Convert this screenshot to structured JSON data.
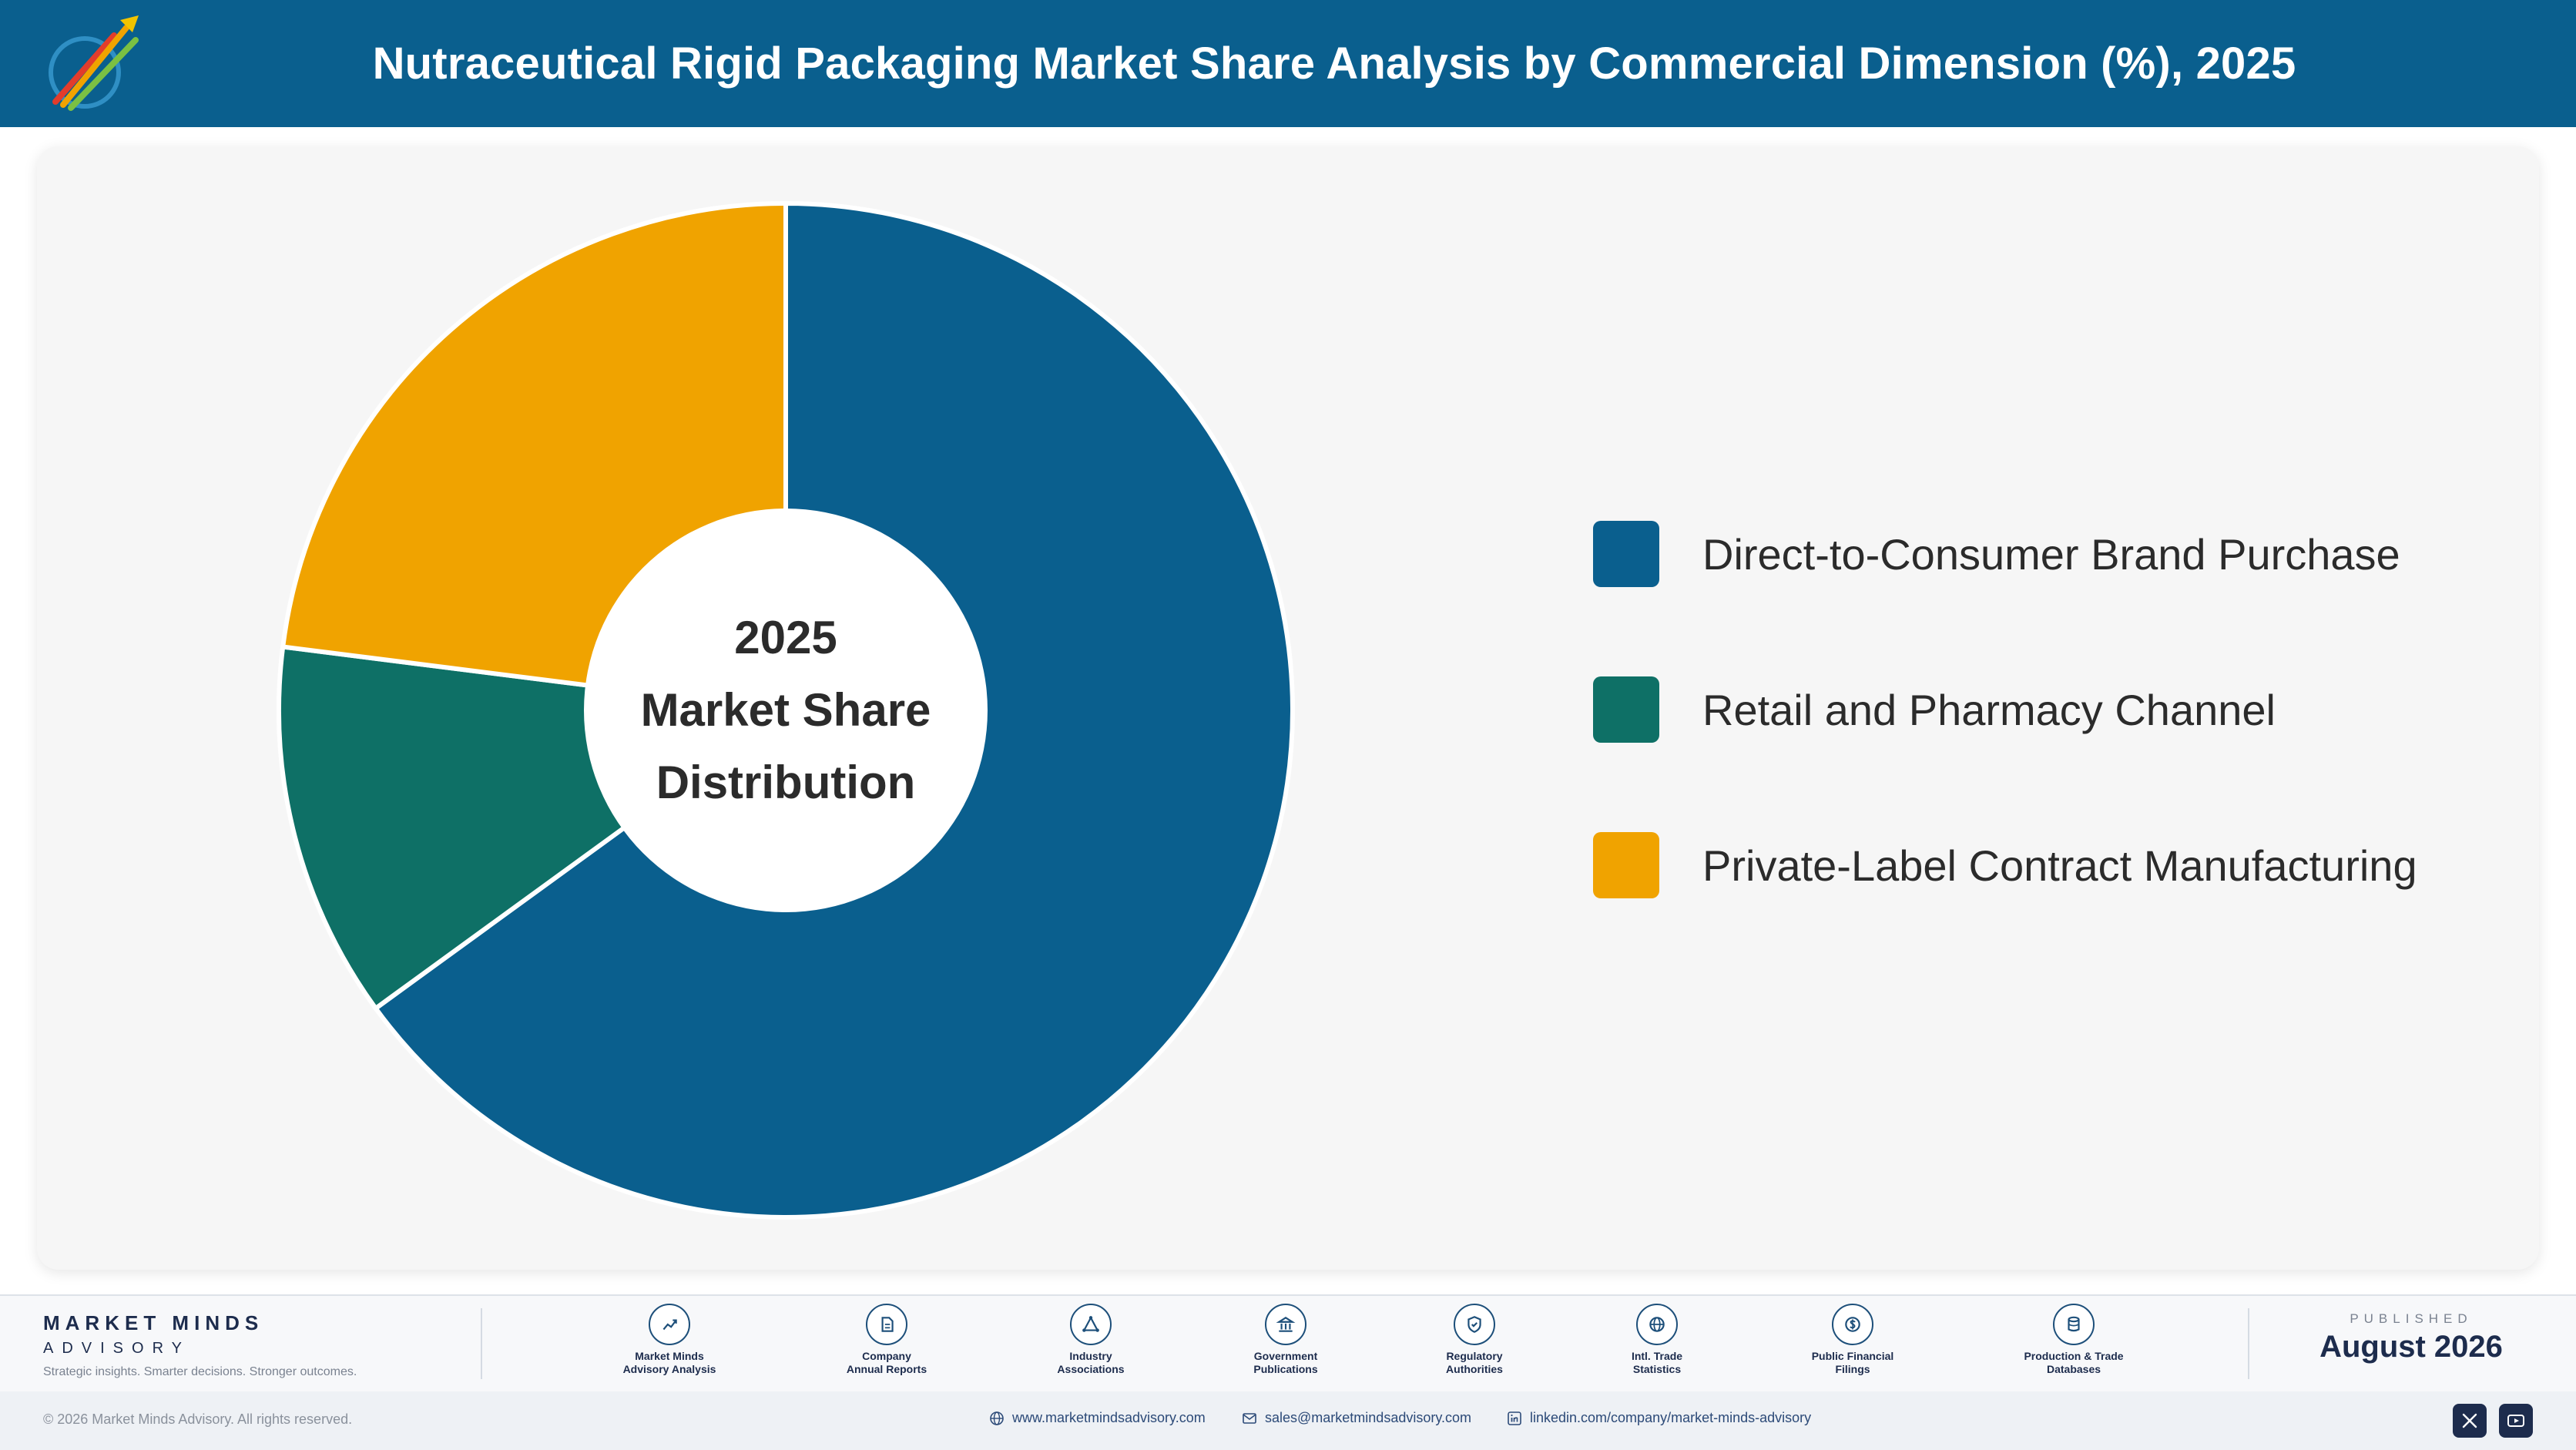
{
  "header": {
    "title": "Nutraceutical Rigid Packaging Market Share Analysis by Commercial Dimension (%), 2025"
  },
  "chart_data": {
    "type": "pie",
    "donut": true,
    "center_label": [
      "2025",
      "Market Share",
      "Distribution"
    ],
    "categories": [
      "Direct-to-Consumer Brand Purchase",
      "Retail and Pharmacy Channel",
      "Private-Label Contract Manufacturing"
    ],
    "values": [
      65,
      12,
      23
    ],
    "colors": [
      "#0a5f8e",
      "#0e7066",
      "#f0a300"
    ],
    "legend_position": "right"
  },
  "footer": {
    "brand_name": "MARKET MINDS",
    "brand_sub": "ADVISORY",
    "tagline": "Strategic insights. Smarter decisions. Stronger outcomes.",
    "sources": [
      {
        "line1": "Market Minds",
        "line2": "Advisory Analysis",
        "icon": "trend-icon"
      },
      {
        "line1": "Company",
        "line2": "Annual Reports",
        "icon": "document-icon"
      },
      {
        "line1": "Industry",
        "line2": "Associations",
        "icon": "network-icon"
      },
      {
        "line1": "Government",
        "line2": "Publications",
        "icon": "building-icon"
      },
      {
        "line1": "Regulatory",
        "line2": "Authorities",
        "icon": "shield-icon"
      },
      {
        "line1": "Intl. Trade",
        "line2": "Statistics",
        "icon": "globe-icon"
      },
      {
        "line1": "Public Financial",
        "line2": "Filings",
        "icon": "dollar-icon"
      },
      {
        "line1": "Production & Trade",
        "line2": "Databases",
        "icon": "database-icon"
      }
    ],
    "published_label": "PUBLISHED",
    "published_date": "August 2026",
    "copyright": "© 2026 Market Minds Advisory. All rights reserved.",
    "website": "www.marketmindsadvisory.com",
    "email": "sales@marketmindsadvisory.com",
    "linkedin": "linkedin.com/company/market-minds-advisory"
  }
}
